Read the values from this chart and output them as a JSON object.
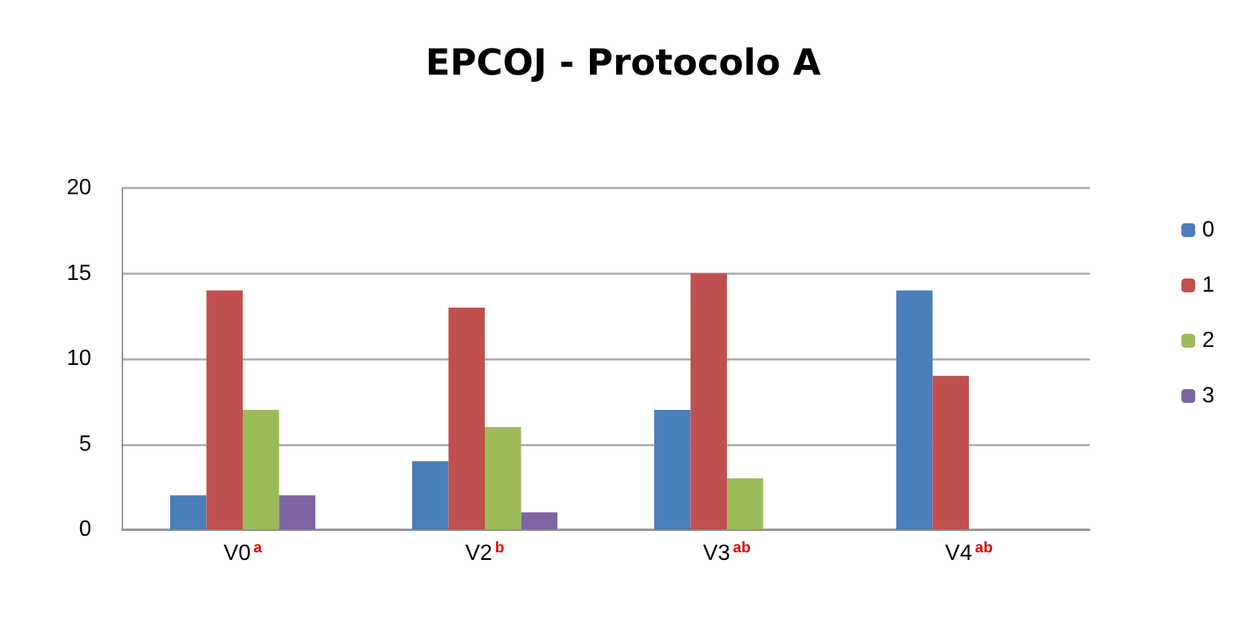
{
  "chart_data": {
    "type": "bar",
    "title": "EPCOJ - Protocolo A",
    "categories": [
      "V0$^{a}$",
      "V2$^{b}$",
      "V3$^{ab}$",
      "V4$^{ab}$"
    ],
    "series": [
      {
        "name": "0",
        "color": "#4a7ebb",
        "values": [
          2,
          4,
          7,
          14
        ]
      },
      {
        "name": "1",
        "color": "#c0504d",
        "values": [
          14,
          13,
          15,
          9
        ]
      },
      {
        "name": "2",
        "color": "#9bbb59",
        "values": [
          7,
          6,
          3,
          0
        ]
      },
      {
        "name": "3",
        "color": "#8064a2",
        "values": [
          2,
          1,
          0,
          0
        ]
      }
    ],
    "ylim": [
      0,
      20
    ],
    "yticks": [
      0,
      5,
      10,
      15,
      20
    ],
    "grid": "y",
    "legend": "right"
  }
}
